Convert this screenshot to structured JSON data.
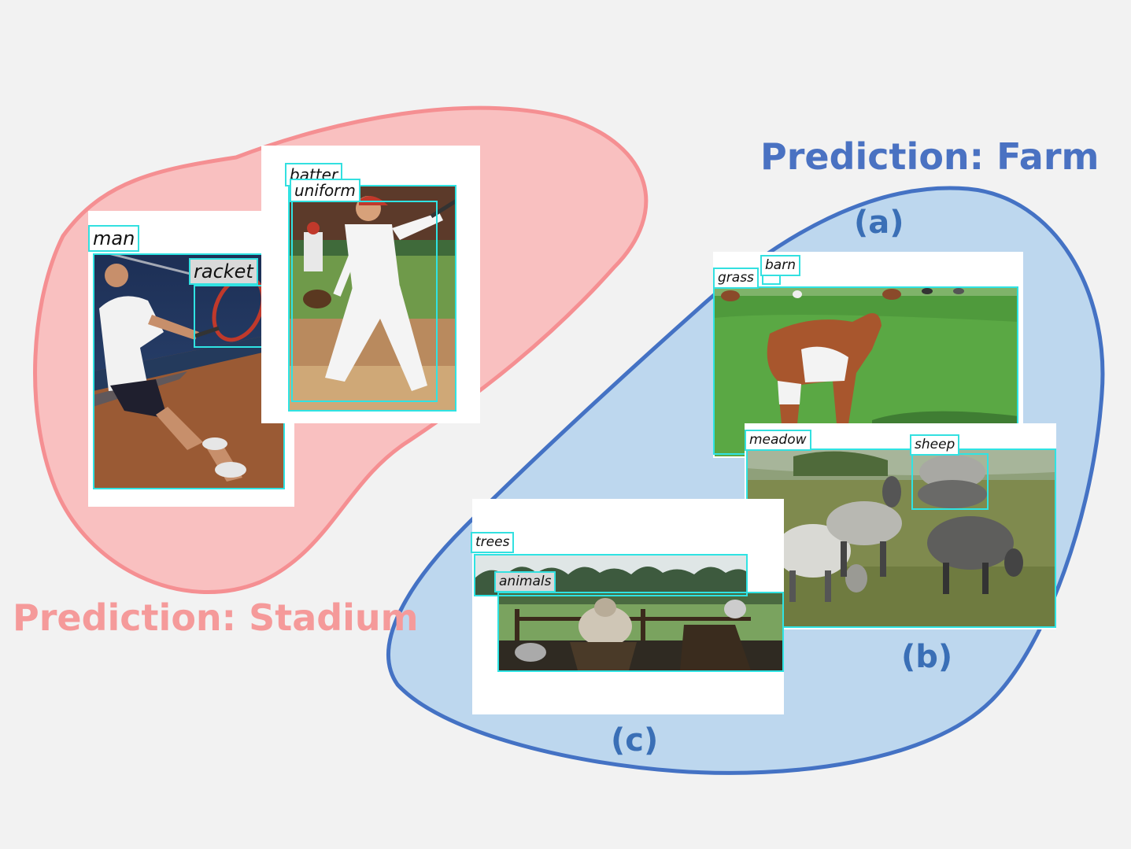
{
  "headings": {
    "stadium": "Prediction: Stadium",
    "farm": "Prediction: Farm"
  },
  "panels": {
    "a": "(a)",
    "b": "(b)",
    "c": "(c)"
  },
  "tags": {
    "man": "man",
    "racket": "racket",
    "batter": "batter",
    "uniform": "uniform",
    "grass": "grass",
    "barn": "barn",
    "meadow": "meadow",
    "sheep": "sheep",
    "trees": "trees",
    "animals": "animals"
  },
  "colors": {
    "stadium_fill": "#f9c0c0",
    "stadium_stroke": "#f58f92",
    "stadium_text": "#f59a9a",
    "farm_fill": "#bdd7ee",
    "farm_stroke": "#4472c4",
    "farm_text": "#4a72c2",
    "bbox": "#2fe3e3"
  }
}
